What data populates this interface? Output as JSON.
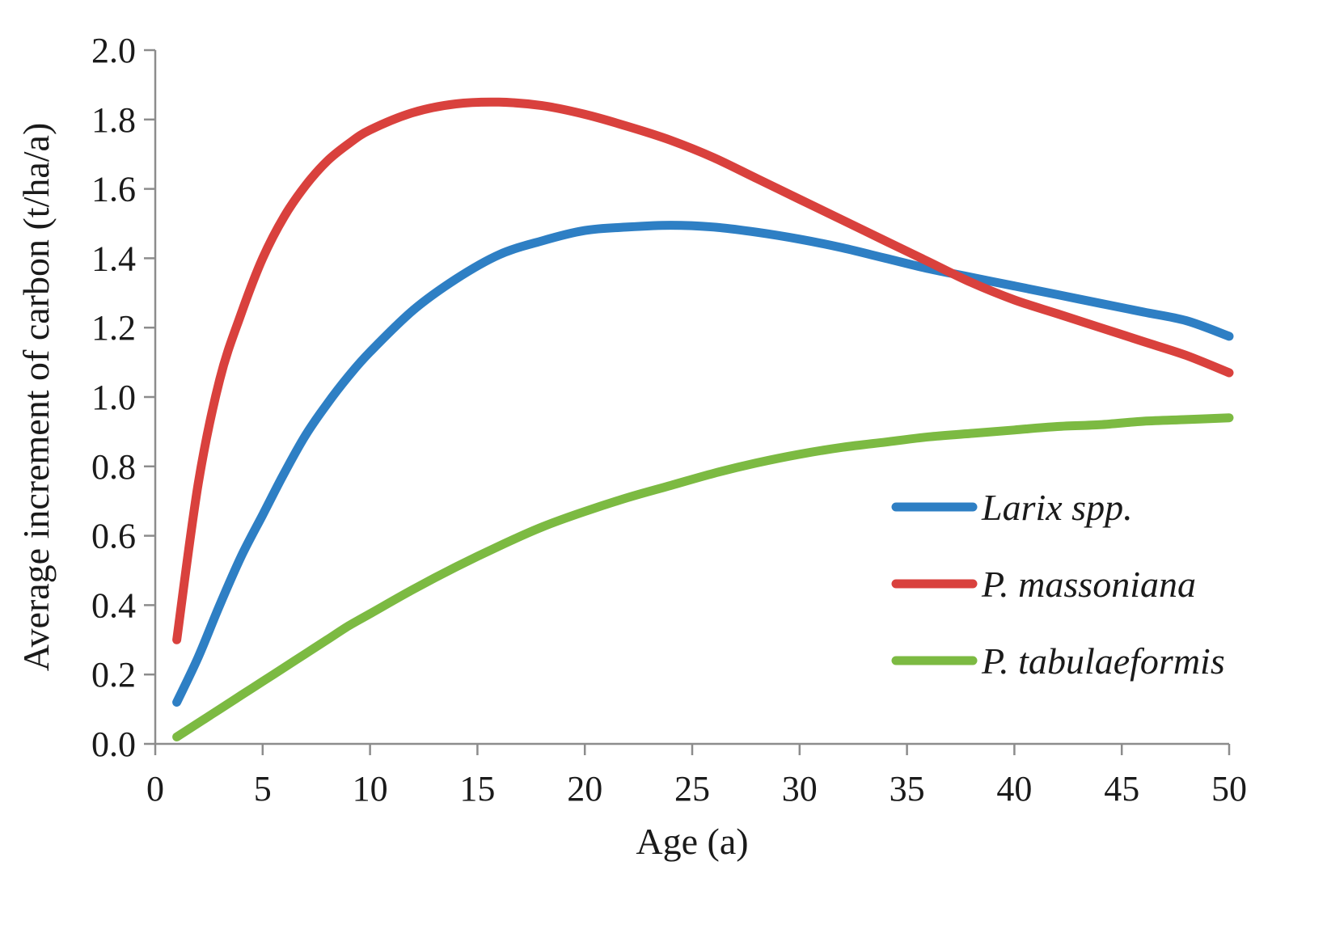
{
  "chart_data": {
    "type": "line",
    "title": "",
    "xlabel": "Age (a)",
    "ylabel": "Average increment of carbon (t/ha/a)",
    "xlim": [
      0,
      50
    ],
    "ylim": [
      0,
      2.0
    ],
    "x_ticks": [
      0,
      5,
      10,
      15,
      20,
      25,
      30,
      35,
      40,
      45,
      50
    ],
    "y_ticks": [
      0.0,
      0.2,
      0.4,
      0.6,
      0.8,
      1.0,
      1.2,
      1.4,
      1.6,
      1.8,
      2.0
    ],
    "x_tick_labels": [
      "0",
      "5",
      "10",
      "15",
      "20",
      "25",
      "30",
      "35",
      "40",
      "45",
      "50"
    ],
    "y_tick_labels": [
      "0.0",
      "0.2",
      "0.4",
      "0.6",
      "0.8",
      "1.0",
      "1.2",
      "1.4",
      "1.6",
      "1.8",
      "2.0"
    ],
    "grid": false,
    "legend_position": "right-middle",
    "x": [
      1,
      2,
      3,
      4,
      5,
      6,
      7,
      8,
      9,
      10,
      12,
      14,
      16,
      18,
      20,
      22,
      24,
      26,
      28,
      30,
      32,
      34,
      36,
      38,
      40,
      42,
      44,
      46,
      48,
      50
    ],
    "series": [
      {
        "name": "Larix spp.",
        "color": "#2e7fc4",
        "values": [
          0.12,
          0.25,
          0.4,
          0.54,
          0.66,
          0.78,
          0.89,
          0.98,
          1.06,
          1.13,
          1.25,
          1.34,
          1.41,
          1.45,
          1.48,
          1.49,
          1.495,
          1.49,
          1.475,
          1.455,
          1.43,
          1.4,
          1.37,
          1.345,
          1.32,
          1.295,
          1.27,
          1.245,
          1.22,
          1.175
        ]
      },
      {
        "name": "P. massoniana",
        "color": "#d9413d",
        "values": [
          0.3,
          0.75,
          1.05,
          1.24,
          1.4,
          1.52,
          1.61,
          1.68,
          1.73,
          1.77,
          1.82,
          1.845,
          1.85,
          1.84,
          1.815,
          1.78,
          1.74,
          1.69,
          1.63,
          1.57,
          1.51,
          1.45,
          1.39,
          1.33,
          1.28,
          1.24,
          1.2,
          1.16,
          1.12,
          1.07
        ]
      },
      {
        "name": "P. tabulaeformis",
        "color": "#7cba42",
        "values": [
          0.02,
          0.06,
          0.1,
          0.14,
          0.18,
          0.22,
          0.26,
          0.3,
          0.34,
          0.375,
          0.445,
          0.51,
          0.57,
          0.625,
          0.67,
          0.71,
          0.745,
          0.78,
          0.81,
          0.835,
          0.855,
          0.87,
          0.885,
          0.895,
          0.905,
          0.915,
          0.92,
          0.93,
          0.935,
          0.94
        ]
      }
    ]
  }
}
